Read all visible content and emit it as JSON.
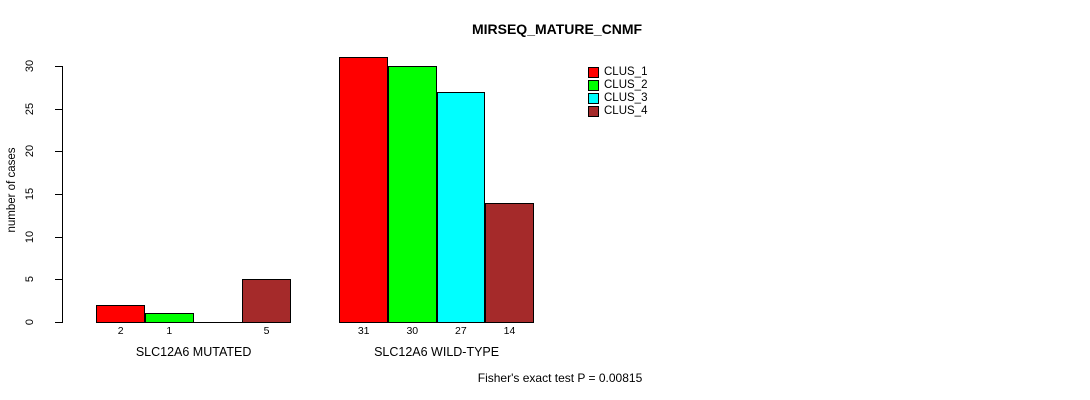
{
  "title": "MIRSEQ_MATURE_CNMF",
  "ylabel": "number of cases",
  "footer_annotation": "Fisher's exact test P = 0.00815",
  "colors": {
    "clus_1": "#FF0000",
    "clus_2": "#00FF00",
    "clus_3": "#00FFFF",
    "clus_4": "#A52A2A",
    "axis": "#000000",
    "background": "#FFFFFF"
  },
  "legend": {
    "position": "top-right",
    "entries": [
      {
        "label": "CLUS_1",
        "color": "#FF0000"
      },
      {
        "label": "CLUS_2",
        "color": "#00FF00"
      },
      {
        "label": "CLUS_3",
        "color": "#00FFFF"
      },
      {
        "label": "CLUS_4",
        "color": "#A52A2A"
      }
    ]
  },
  "chart_data": {
    "type": "bar",
    "title": "MIRSEQ_MATURE_CNMF",
    "categories": [
      "SLC12A6 MUTATED",
      "SLC12A6 WILD-TYPE"
    ],
    "series": [
      {
        "name": "CLUS_1",
        "color": "#FF0000",
        "values": [
          2,
          31
        ]
      },
      {
        "name": "CLUS_2",
        "color": "#00FF00",
        "values": [
          1,
          30
        ]
      },
      {
        "name": "CLUS_3",
        "color": "#00FFFF",
        "values": [
          0,
          27
        ]
      },
      {
        "name": "CLUS_4",
        "color": "#A52A2A",
        "values": [
          5,
          14
        ]
      }
    ],
    "bar_value_labels": [
      [
        "2",
        "1",
        "",
        "5"
      ],
      [
        "31",
        "30",
        "27",
        "14"
      ]
    ],
    "xlabel": "",
    "ylabel": "number of cases",
    "ylim": [
      0,
      30
    ],
    "yticks": [
      0,
      5,
      10,
      15,
      20,
      25,
      30
    ],
    "grid": false,
    "legend_position": "top-right",
    "annotation": "Fisher's exact test P = 0.00815"
  }
}
